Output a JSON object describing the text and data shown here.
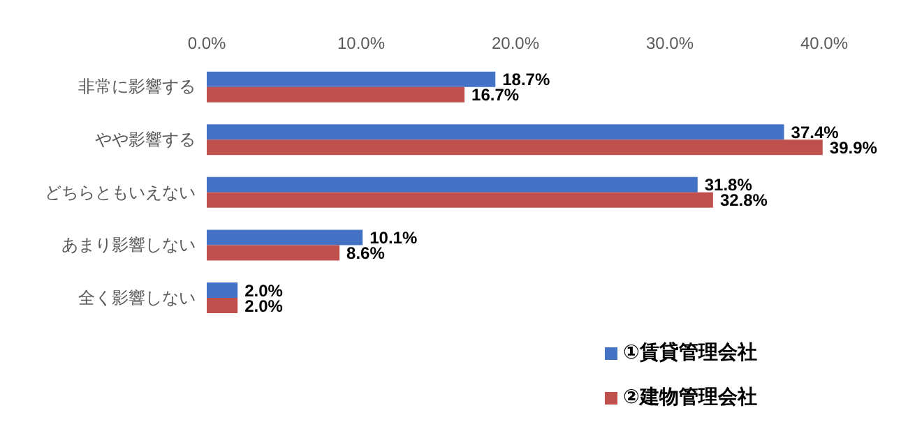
{
  "chart_data": {
    "type": "bar",
    "orientation": "horizontal",
    "categories": [
      "非常に影響する",
      "やや影響する",
      "どちらともいえない",
      "あまり影響しない",
      "全く影響しない"
    ],
    "series": [
      {
        "name": "①賃貸管理会社",
        "color": "#4472c4",
        "values": [
          18.7,
          37.4,
          31.8,
          10.1,
          2.0
        ],
        "value_labels": [
          "18.7%",
          "37.4%",
          "31.8%",
          "10.1%",
          "2.0%"
        ]
      },
      {
        "name": "②建物管理会社",
        "color": "#c0504d",
        "values": [
          16.7,
          39.9,
          32.8,
          8.6,
          2.0
        ],
        "value_labels": [
          "16.7%",
          "39.9%",
          "32.8%",
          "8.6%",
          "2.0%"
        ]
      }
    ],
    "xlim": [
      0,
      40
    ],
    "xticks": [
      {
        "value": 0,
        "label": "0.0%"
      },
      {
        "value": 10,
        "label": "10.0%"
      },
      {
        "value": 20,
        "label": "20.0%"
      },
      {
        "value": 30,
        "label": "30.0%"
      },
      {
        "value": 40,
        "label": "40.0%"
      }
    ],
    "grid": false,
    "legend": "bottom right"
  }
}
